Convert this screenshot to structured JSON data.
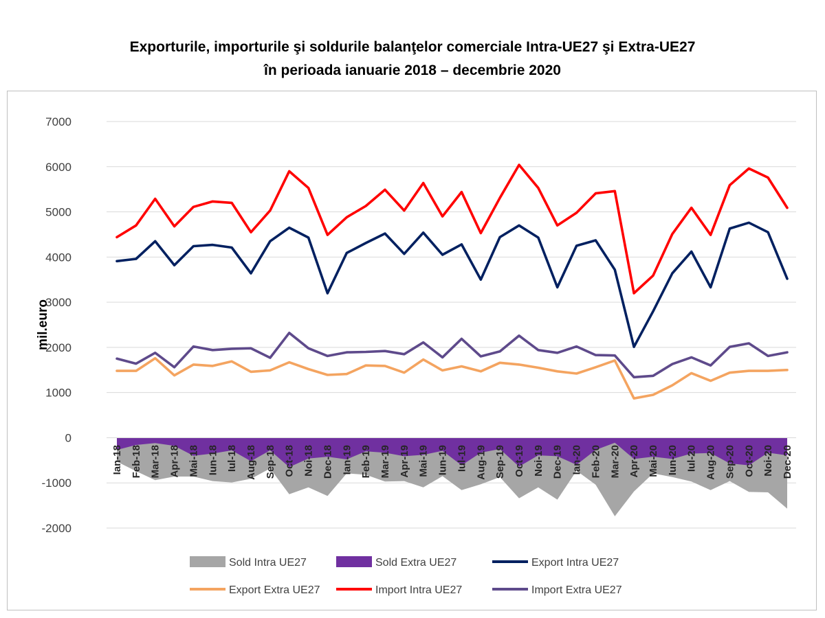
{
  "title": {
    "line1": "Exporturile, importurile şi soldurile balanţelor comerciale Intra-UE27 şi Extra-UE27",
    "line2": "în perioada ianuarie 2018 – decembrie 2020"
  },
  "chart_data": {
    "type": "line",
    "ylabel": "mil.euro",
    "ylim": [
      -2000,
      7000
    ],
    "yticks": [
      -2000,
      -1000,
      0,
      1000,
      2000,
      3000,
      4000,
      5000,
      6000,
      7000
    ],
    "grid": true,
    "legend_position": "bottom",
    "categories": [
      "Ian-18",
      "Feb-18",
      "Mar-18",
      "Apr-18",
      "Mai-18",
      "Iun-18",
      "Iul-18",
      "Aug-18",
      "Sep-18",
      "Oct-18",
      "Noi-18",
      "Dec-18",
      "Ian-19",
      "Feb-19",
      "Mar-19",
      "Apr-19",
      "Mai-19",
      "Iun-19",
      "Iul-19",
      "Aug-19",
      "Sep-19",
      "Oct-19",
      "Noi-19",
      "Dec-19",
      "Ian-20",
      "Feb-20",
      "Mar-20",
      "Apr-20",
      "Mai-20",
      "Iun-20",
      "Iul-20",
      "Aug-20",
      "Sep-20",
      "Oct-20",
      "Noi-20",
      "Dec-20"
    ],
    "series": [
      {
        "name": "Sold Intra UE27",
        "kind": "area",
        "color": "#a6a6a6",
        "values": [
          -530,
          -740,
          -940,
          -860,
          -860,
          -960,
          -990,
          -910,
          -680,
          -1250,
          -1100,
          -1290,
          -790,
          -820,
          -970,
          -960,
          -1100,
          -850,
          -1160,
          -1030,
          -870,
          -1340,
          -1100,
          -1370,
          -730,
          -1040,
          -1740,
          -1190,
          -790,
          -870,
          -970,
          -1160,
          -960,
          -1200,
          -1210,
          -1570
        ]
      },
      {
        "name": "Sold Extra UE27",
        "kind": "area",
        "color": "#7030a0",
        "values": [
          -270,
          -160,
          -120,
          -180,
          -400,
          -350,
          -280,
          -520,
          -280,
          -650,
          -460,
          -420,
          -480,
          -300,
          -330,
          -410,
          -380,
          -290,
          -610,
          -330,
          -250,
          -640,
          -390,
          -410,
          -600,
          -270,
          -110,
          -470,
          -420,
          -470,
          -350,
          -340,
          -570,
          -610,
          -330,
          -390
        ]
      },
      {
        "name": "Export Intra UE27",
        "kind": "line",
        "color": "#002060",
        "values": [
          3910,
          3960,
          4350,
          3820,
          4240,
          4270,
          4210,
          3640,
          4350,
          4650,
          4430,
          3200,
          4090,
          4310,
          4520,
          4070,
          4540,
          4050,
          4280,
          3500,
          4440,
          4700,
          4430,
          3330,
          4250,
          4370,
          3720,
          2010,
          2800,
          3640,
          4120,
          3330,
          4630,
          4760,
          4550,
          3520
        ]
      },
      {
        "name": "Export Extra UE27",
        "kind": "line",
        "color": "#f4a460",
        "values": [
          1480,
          1480,
          1760,
          1380,
          1620,
          1590,
          1690,
          1460,
          1490,
          1670,
          1520,
          1390,
          1410,
          1600,
          1590,
          1440,
          1730,
          1490,
          1580,
          1470,
          1660,
          1620,
          1550,
          1470,
          1420,
          1560,
          1710,
          870,
          950,
          1160,
          1430,
          1260,
          1440,
          1480,
          1480,
          1500
        ]
      },
      {
        "name": "Import Intra UE27",
        "kind": "line",
        "color": "#ff0000",
        "values": [
          4440,
          4700,
          5290,
          4680,
          5110,
          5230,
          5200,
          4550,
          5030,
          5900,
          5530,
          4490,
          4880,
          5130,
          5490,
          5030,
          5640,
          4900,
          5440,
          4530,
          5310,
          6040,
          5530,
          4700,
          4980,
          5410,
          5460,
          3200,
          3590,
          4510,
          5090,
          4490,
          5590,
          5960,
          5760,
          5090
        ]
      },
      {
        "name": "Import Extra UE27",
        "kind": "line",
        "color": "#5e4a8b",
        "values": [
          1750,
          1640,
          1880,
          1560,
          2020,
          1940,
          1970,
          1980,
          1770,
          2320,
          1980,
          1810,
          1890,
          1900,
          1920,
          1850,
          2110,
          1780,
          2190,
          1800,
          1910,
          2260,
          1940,
          1880,
          2020,
          1830,
          1820,
          1340,
          1370,
          1630,
          1780,
          1600,
          2010,
          2090,
          1810,
          1890
        ]
      }
    ]
  }
}
